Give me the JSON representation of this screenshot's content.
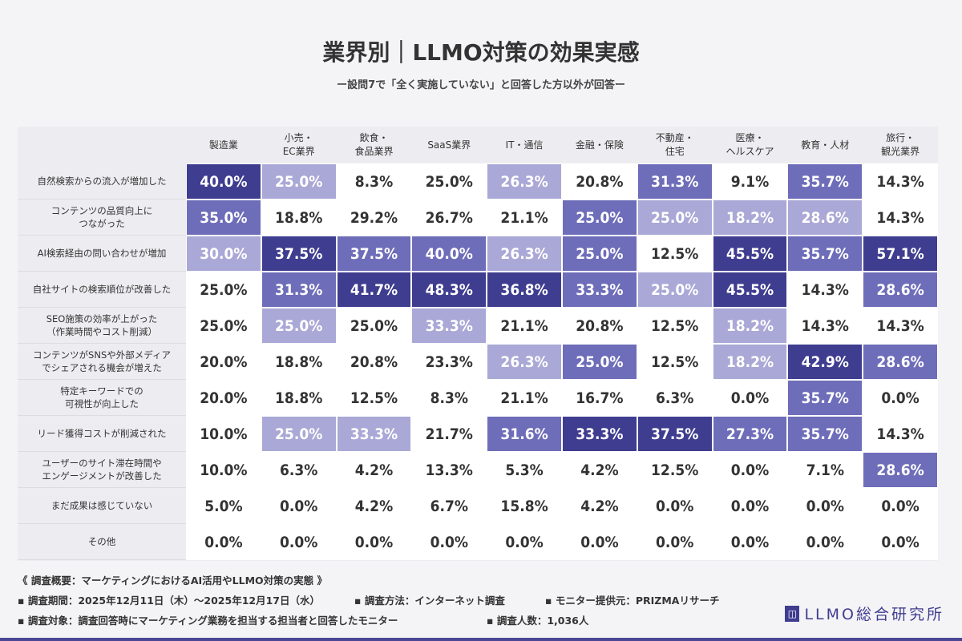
{
  "title": "業界別｜LLMO対策の効果実感",
  "subtitle": "ー設問7で「全く実施していない」と回答した方以外が回答ー",
  "colors": {
    "level0": "#ffffff",
    "level1": "#a9a8d6",
    "level2": "#6e6db9",
    "level3": "#3f3d8f"
  },
  "chart_data": {
    "type": "heatmap",
    "columns": [
      "製造業",
      "小売・\nEC業界",
      "飲食・\n食品業界",
      "SaaS業界",
      "IT・通信",
      "金融・保険",
      "不動産・\n住宅",
      "医療・\nヘルスケア",
      "教育・人材",
      "旅行・\n観光業界"
    ],
    "rows": [
      "自然検索からの流入が増加した",
      "コンテンツの品質向上に\nつながった",
      "AI検索経由の問い合わせが増加",
      "自社サイトの検索順位が改善した",
      "SEO施策の効率が上がった\n（作業時間やコスト削減）",
      "コンテンツがSNSや外部メディア\nでシェアされる機会が増えた",
      "特定キーワードでの\n可視性が向上した",
      "リード獲得コストが削減された",
      "ユーザーのサイト滞在時間や\nエンゲージメントが改善した",
      "まだ成果は感じていない",
      "その他"
    ],
    "values": [
      [
        "40.0%",
        "25.0%",
        "8.3%",
        "25.0%",
        "26.3%",
        "20.8%",
        "31.3%",
        "9.1%",
        "35.7%",
        "14.3%"
      ],
      [
        "35.0%",
        "18.8%",
        "29.2%",
        "26.7%",
        "21.1%",
        "25.0%",
        "25.0%",
        "18.2%",
        "28.6%",
        "14.3%"
      ],
      [
        "30.0%",
        "37.5%",
        "37.5%",
        "40.0%",
        "26.3%",
        "25.0%",
        "12.5%",
        "45.5%",
        "35.7%",
        "57.1%"
      ],
      [
        "25.0%",
        "31.3%",
        "41.7%",
        "48.3%",
        "36.8%",
        "33.3%",
        "25.0%",
        "45.5%",
        "14.3%",
        "28.6%"
      ],
      [
        "25.0%",
        "25.0%",
        "25.0%",
        "33.3%",
        "21.1%",
        "20.8%",
        "12.5%",
        "18.2%",
        "14.3%",
        "14.3%"
      ],
      [
        "20.0%",
        "18.8%",
        "20.8%",
        "23.3%",
        "26.3%",
        "25.0%",
        "12.5%",
        "18.2%",
        "42.9%",
        "28.6%"
      ],
      [
        "20.0%",
        "18.8%",
        "12.5%",
        "8.3%",
        "21.1%",
        "16.7%",
        "6.3%",
        "0.0%",
        "35.7%",
        "0.0%"
      ],
      [
        "10.0%",
        "25.0%",
        "33.3%",
        "21.7%",
        "31.6%",
        "33.3%",
        "37.5%",
        "27.3%",
        "35.7%",
        "14.3%"
      ],
      [
        "10.0%",
        "6.3%",
        "4.2%",
        "13.3%",
        "5.3%",
        "4.2%",
        "12.5%",
        "0.0%",
        "7.1%",
        "28.6%"
      ],
      [
        "5.0%",
        "0.0%",
        "4.2%",
        "6.7%",
        "15.8%",
        "4.2%",
        "0.0%",
        "0.0%",
        "0.0%",
        "0.0%"
      ],
      [
        "0.0%",
        "0.0%",
        "0.0%",
        "0.0%",
        "0.0%",
        "0.0%",
        "0.0%",
        "0.0%",
        "0.0%",
        "0.0%"
      ]
    ],
    "shading": [
      [
        3,
        1,
        0,
        0,
        1,
        0,
        2,
        0,
        2,
        0
      ],
      [
        2,
        0,
        0,
        0,
        0,
        2,
        1,
        1,
        1,
        0
      ],
      [
        1,
        3,
        2,
        2,
        1,
        2,
        0,
        3,
        2,
        3
      ],
      [
        0,
        2,
        3,
        3,
        3,
        2,
        1,
        3,
        0,
        2
      ],
      [
        0,
        1,
        0,
        1,
        0,
        0,
        0,
        1,
        0,
        0
      ],
      [
        0,
        0,
        0,
        0,
        1,
        2,
        0,
        1,
        3,
        2
      ],
      [
        0,
        0,
        0,
        0,
        0,
        0,
        0,
        0,
        2,
        0
      ],
      [
        0,
        1,
        1,
        0,
        2,
        3,
        3,
        2,
        2,
        0
      ],
      [
        0,
        0,
        0,
        0,
        0,
        0,
        0,
        0,
        0,
        2
      ],
      [
        0,
        0,
        0,
        0,
        0,
        0,
        0,
        0,
        0,
        0
      ],
      [
        0,
        0,
        0,
        0,
        0,
        0,
        0,
        0,
        0,
        0
      ]
    ]
  },
  "footer": {
    "heading": "《 調査概要：マーケティングにおけるAI活用やLLMO対策の実態 》",
    "period": "▪ 調査期間：2025年12月11日（木）〜2025年12月17日（水）",
    "method": "▪ 調査方法：インターネット調査",
    "provider": "▪ モニター提供元：PRIZMAリサーチ",
    "target": "▪ 調査対象：調査回答時にマーケティング業務を担当する担当者と回答したモニター",
    "count": "▪ 調査人数：1,036人"
  },
  "logo": {
    "text": "LLMO総合研究所"
  }
}
